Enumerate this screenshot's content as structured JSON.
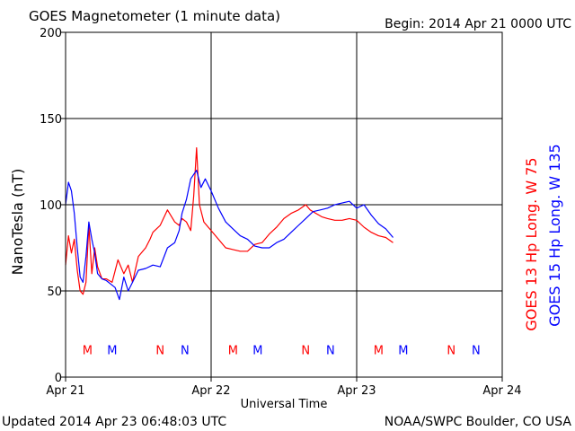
{
  "header": {
    "title": "GOES Magnetometer (1 minute data)",
    "begin": "Begin:  2014 Apr 21 0000 UTC"
  },
  "footer": {
    "updated": "Updated 2014 Apr 23 06:48:03 UTC",
    "credit": "NOAA/SWPC Boulder, CO USA"
  },
  "chart_data": {
    "type": "line",
    "title": "GOES Magnetometer (1 minute data)",
    "xlabel": "Universal Time",
    "ylabel": "NanoTesla (nT)",
    "x_unit": "days since 2014 Apr 21 0000 UTC",
    "xlim": [
      0,
      3
    ],
    "ylim": [
      0,
      200
    ],
    "yticks": [
      0,
      50,
      100,
      150,
      200
    ],
    "xticks": [
      {
        "x": 0,
        "label": "Apr 21"
      },
      {
        "x": 1,
        "label": "Apr 22"
      },
      {
        "x": 2,
        "label": "Apr 23"
      },
      {
        "x": 3,
        "label": "Apr 24"
      }
    ],
    "grid": true,
    "legend_position": "right, vertical",
    "series": [
      {
        "name": "GOES 13 Hp  Long. W 75",
        "color": "#ff0000",
        "points": [
          [
            0.0,
            65
          ],
          [
            0.02,
            82
          ],
          [
            0.04,
            72
          ],
          [
            0.06,
            80
          ],
          [
            0.08,
            62
          ],
          [
            0.1,
            50
          ],
          [
            0.12,
            48
          ],
          [
            0.14,
            55
          ],
          [
            0.16,
            88
          ],
          [
            0.18,
            60
          ],
          [
            0.2,
            75
          ],
          [
            0.22,
            64
          ],
          [
            0.25,
            57
          ],
          [
            0.28,
            57
          ],
          [
            0.32,
            55
          ],
          [
            0.36,
            68
          ],
          [
            0.4,
            60
          ],
          [
            0.43,
            65
          ],
          [
            0.46,
            55
          ],
          [
            0.5,
            70
          ],
          [
            0.55,
            75
          ],
          [
            0.58,
            80
          ],
          [
            0.6,
            84
          ],
          [
            0.65,
            88
          ],
          [
            0.7,
            97
          ],
          [
            0.75,
            90
          ],
          [
            0.78,
            88
          ],
          [
            0.8,
            92
          ],
          [
            0.83,
            90
          ],
          [
            0.86,
            85
          ],
          [
            0.88,
            105
          ],
          [
            0.9,
            133
          ],
          [
            0.92,
            100
          ],
          [
            0.95,
            90
          ],
          [
            1.0,
            85
          ],
          [
            1.05,
            80
          ],
          [
            1.1,
            75
          ],
          [
            1.15,
            74
          ],
          [
            1.2,
            73
          ],
          [
            1.25,
            73
          ],
          [
            1.3,
            77
          ],
          [
            1.35,
            78
          ],
          [
            1.4,
            83
          ],
          [
            1.45,
            87
          ],
          [
            1.5,
            92
          ],
          [
            1.55,
            95
          ],
          [
            1.6,
            97
          ],
          [
            1.65,
            100
          ],
          [
            1.68,
            97
          ],
          [
            1.72,
            95
          ],
          [
            1.76,
            93
          ],
          [
            1.8,
            92
          ],
          [
            1.85,
            91
          ],
          [
            1.9,
            91
          ],
          [
            1.95,
            92
          ],
          [
            2.0,
            91
          ],
          [
            2.05,
            87
          ],
          [
            2.1,
            84
          ],
          [
            2.15,
            82
          ],
          [
            2.2,
            81
          ],
          [
            2.25,
            78
          ]
        ]
      },
      {
        "name": "GOES 15 Hp  Long. W 135",
        "color": "#0000ff",
        "points": [
          [
            0.0,
            100
          ],
          [
            0.02,
            113
          ],
          [
            0.04,
            108
          ],
          [
            0.06,
            95
          ],
          [
            0.08,
            75
          ],
          [
            0.1,
            58
          ],
          [
            0.12,
            55
          ],
          [
            0.14,
            70
          ],
          [
            0.16,
            90
          ],
          [
            0.18,
            80
          ],
          [
            0.2,
            72
          ],
          [
            0.22,
            60
          ],
          [
            0.25,
            57
          ],
          [
            0.28,
            56
          ],
          [
            0.31,
            54
          ],
          [
            0.34,
            52
          ],
          [
            0.37,
            45
          ],
          [
            0.4,
            58
          ],
          [
            0.43,
            50
          ],
          [
            0.46,
            55
          ],
          [
            0.5,
            62
          ],
          [
            0.55,
            63
          ],
          [
            0.6,
            65
          ],
          [
            0.65,
            64
          ],
          [
            0.7,
            75
          ],
          [
            0.75,
            78
          ],
          [
            0.78,
            85
          ],
          [
            0.8,
            95
          ],
          [
            0.83,
            103
          ],
          [
            0.86,
            115
          ],
          [
            0.9,
            120
          ],
          [
            0.93,
            110
          ],
          [
            0.96,
            115
          ],
          [
            1.0,
            108
          ],
          [
            1.05,
            98
          ],
          [
            1.1,
            90
          ],
          [
            1.15,
            86
          ],
          [
            1.2,
            82
          ],
          [
            1.25,
            80
          ],
          [
            1.3,
            76
          ],
          [
            1.35,
            75
          ],
          [
            1.4,
            75
          ],
          [
            1.45,
            78
          ],
          [
            1.5,
            80
          ],
          [
            1.55,
            84
          ],
          [
            1.6,
            88
          ],
          [
            1.65,
            92
          ],
          [
            1.7,
            96
          ],
          [
            1.75,
            97
          ],
          [
            1.8,
            98
          ],
          [
            1.85,
            100
          ],
          [
            1.9,
            101
          ],
          [
            1.95,
            102
          ],
          [
            2.0,
            98
          ],
          [
            2.05,
            100
          ],
          [
            2.1,
            94
          ],
          [
            2.15,
            89
          ],
          [
            2.2,
            86
          ],
          [
            2.25,
            81
          ]
        ]
      }
    ],
    "markers": [
      {
        "x": 0.15,
        "label": "M",
        "color": "#ff0000"
      },
      {
        "x": 0.32,
        "label": "M",
        "color": "#0000ff"
      },
      {
        "x": 0.65,
        "label": "N",
        "color": "#ff0000"
      },
      {
        "x": 0.82,
        "label": "N",
        "color": "#0000ff"
      },
      {
        "x": 1.15,
        "label": "M",
        "color": "#ff0000"
      },
      {
        "x": 1.32,
        "label": "M",
        "color": "#0000ff"
      },
      {
        "x": 1.65,
        "label": "N",
        "color": "#ff0000"
      },
      {
        "x": 1.82,
        "label": "N",
        "color": "#0000ff"
      },
      {
        "x": 2.15,
        "label": "M",
        "color": "#ff0000"
      },
      {
        "x": 2.32,
        "label": "M",
        "color": "#0000ff"
      },
      {
        "x": 2.65,
        "label": "N",
        "color": "#ff0000"
      },
      {
        "x": 2.82,
        "label": "N",
        "color": "#0000ff"
      }
    ],
    "marker_y": 16
  }
}
